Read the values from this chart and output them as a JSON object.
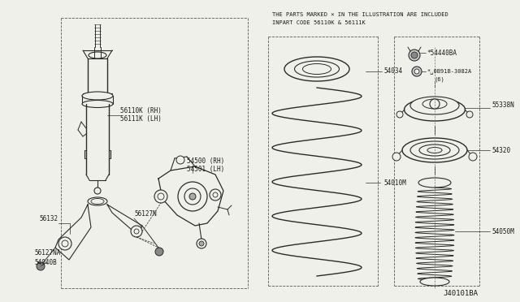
{
  "bg_color": "#f0f0eb",
  "line_color": "#2a2a2a",
  "text_color": "#1a1a1a",
  "diagram_id": "J40101BA",
  "title_line1": "THE PARTS MARKED × IN THE ILLUSTRATION ARE INCLUDED",
  "title_line2": "INPART CODE 56110K & 56111K",
  "figsize": [
    6.4,
    3.72
  ],
  "dpi": 100
}
